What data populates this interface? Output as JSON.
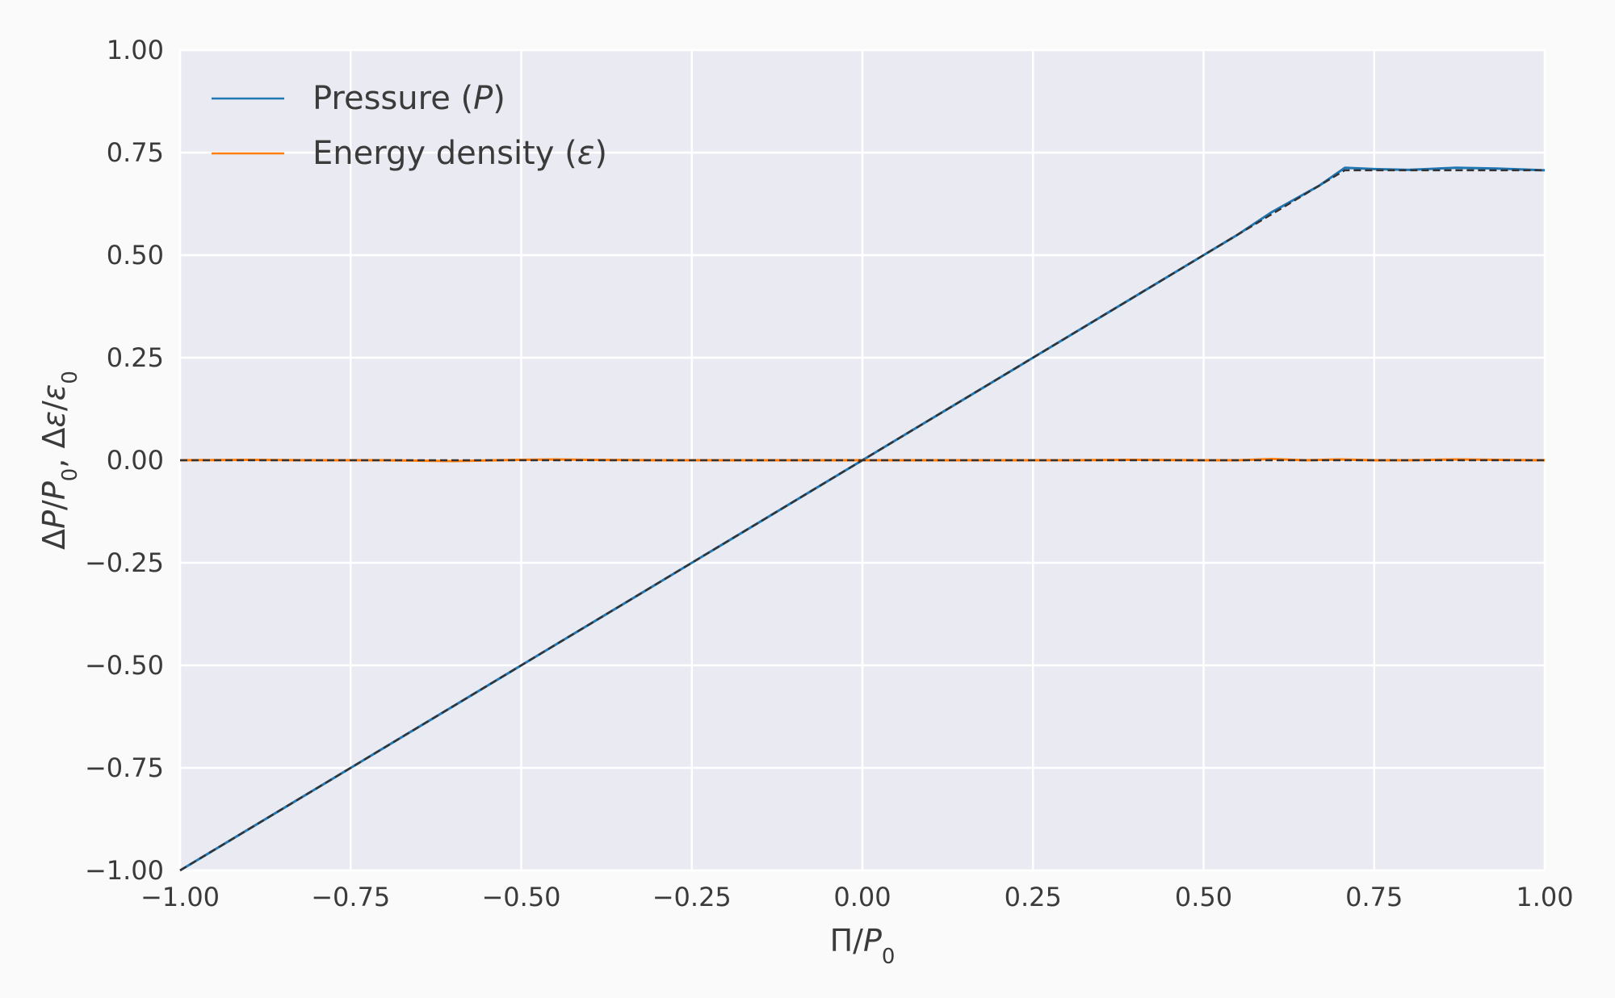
{
  "chart_data": {
    "type": "line",
    "xlabel": {
      "pre": "Π/",
      "var": "P",
      "sub": "0"
    },
    "ylabel": {
      "a_pre": "Δ",
      "a_var": "P",
      "a_mid": "/",
      "a_var2": "P",
      "a_sub": "0",
      "sep": ", ",
      "b_pre": "Δ",
      "b_var": "ε",
      "b_mid": "/",
      "b_var2": "ε",
      "b_sub": "0"
    },
    "xlim": [
      -1.0,
      1.0
    ],
    "ylim": [
      -1.0,
      1.0
    ],
    "x_ticks": [
      "−1.00",
      "−0.75",
      "−0.50",
      "−0.25",
      "0.00",
      "0.25",
      "0.50",
      "0.75",
      "1.00"
    ],
    "y_ticks": [
      "−1.00",
      "−0.75",
      "−0.50",
      "−0.25",
      "0.00",
      "0.25",
      "0.50",
      "0.75",
      "1.00"
    ],
    "grid": true,
    "legend_position": "top-left",
    "series": [
      {
        "name": "Pressure",
        "name_var": "P",
        "color": "#1f77b4",
        "x": [
          -1.0,
          -0.75,
          -0.5,
          -0.25,
          0.0,
          0.25,
          0.5,
          0.55,
          0.6,
          0.67,
          0.707,
          0.75,
          0.8,
          0.87,
          0.93,
          1.0
        ],
        "y": [
          -1.0,
          -0.75,
          -0.5,
          -0.25,
          0.0,
          0.25,
          0.5,
          0.55,
          0.605,
          0.67,
          0.713,
          0.71,
          0.708,
          0.713,
          0.711,
          0.707
        ]
      },
      {
        "name": "Energy density",
        "name_var": "ε",
        "color": "#ff7f0e",
        "x": [
          -1.0,
          -0.9,
          -0.8,
          -0.7,
          -0.6,
          -0.5,
          -0.45,
          -0.4,
          -0.3,
          -0.2,
          -0.1,
          0.0,
          0.1,
          0.2,
          0.3,
          0.4,
          0.5,
          0.55,
          0.6,
          0.65,
          0.7,
          0.75,
          0.8,
          0.87,
          0.93,
          1.0
        ],
        "y": [
          0.0,
          0.001,
          0.0,
          0.0,
          -0.002,
          0.001,
          0.002,
          0.001,
          0.0,
          0.0,
          0.0,
          0.0,
          0.0,
          0.0,
          0.0,
          0.001,
          0.0,
          0.0,
          0.003,
          0.0,
          0.002,
          0.0,
          0.0,
          0.002,
          0.001,
          0.0
        ]
      }
    ],
    "reference_lines": [
      {
        "style": "dashed",
        "color": "#333333",
        "x": [
          -1.0,
          0.707,
          1.0
        ],
        "y": [
          -1.0,
          0.707,
          0.707
        ]
      },
      {
        "style": "dashed",
        "color": "#333333",
        "x": [
          -1.0,
          1.0
        ],
        "y": [
          0.0,
          0.0
        ]
      }
    ]
  },
  "colors": {
    "plot_bg": "#eaeaf2",
    "grid": "#ffffff",
    "page_bg": "#fafafa"
  }
}
